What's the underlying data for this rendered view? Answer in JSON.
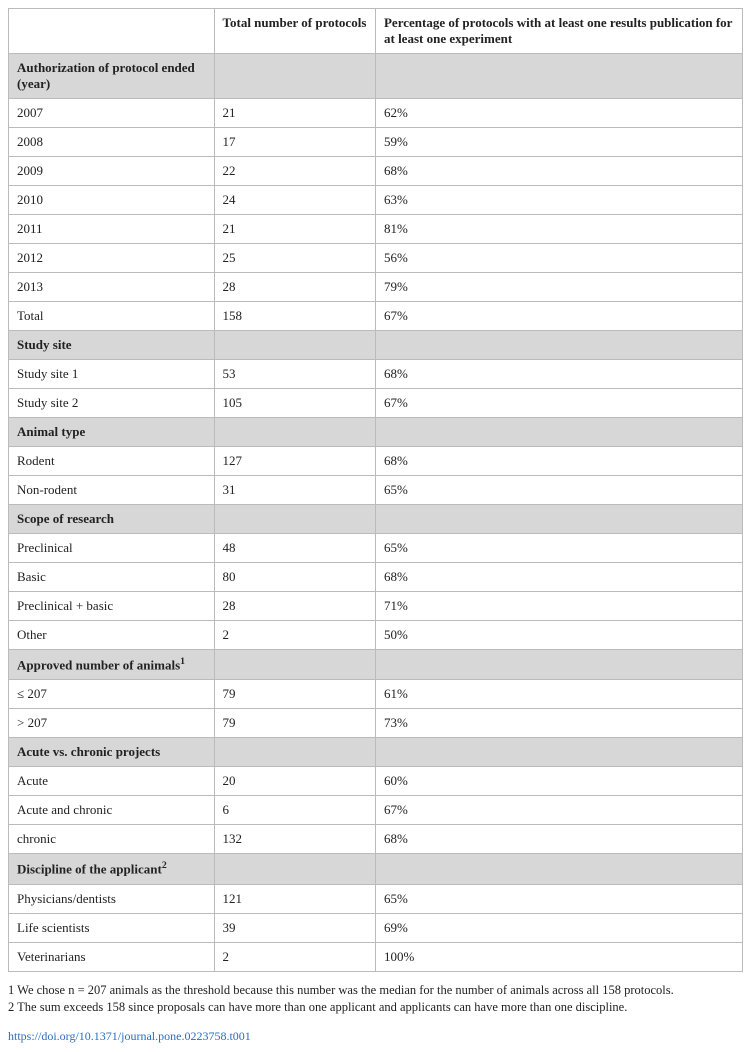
{
  "columns": [
    "",
    "Total number of protocols",
    "Percentage of protocols with at least one results publication for at least one experiment"
  ],
  "sections": [
    {
      "title": "Authorization of protocol ended (year)",
      "rows": [
        [
          "2007",
          "21",
          "62%"
        ],
        [
          "2008",
          "17",
          "59%"
        ],
        [
          "2009",
          "22",
          "68%"
        ],
        [
          "2010",
          "24",
          "63%"
        ],
        [
          "2011",
          "21",
          "81%"
        ],
        [
          "2012",
          "25",
          "56%"
        ],
        [
          "2013",
          "28",
          "79%"
        ],
        [
          "Total",
          "158",
          "67%"
        ]
      ]
    },
    {
      "title": "Study site",
      "rows": [
        [
          "Study site 1",
          "53",
          "68%"
        ],
        [
          "Study site 2",
          "105",
          "67%"
        ]
      ]
    },
    {
      "title": "Animal type",
      "rows": [
        [
          "Rodent",
          "127",
          "68%"
        ],
        [
          "Non-rodent",
          "31",
          "65%"
        ]
      ]
    },
    {
      "title": "Scope of research",
      "rows": [
        [
          "Preclinical",
          "48",
          "65%"
        ],
        [
          "Basic",
          "80",
          "68%"
        ],
        [
          "Preclinical + basic",
          "28",
          "71%"
        ],
        [
          "Other",
          "2",
          "50%"
        ]
      ]
    },
    {
      "title": "Approved number of animals",
      "title_super": "1",
      "rows": [
        [
          "≤ 207",
          "79",
          "61%"
        ],
        [
          "> 207",
          "79",
          "73%"
        ]
      ]
    },
    {
      "title": "Acute vs. chronic projects",
      "rows": [
        [
          "Acute",
          "20",
          "60%"
        ],
        [
          "Acute and chronic",
          "6",
          "67%"
        ],
        [
          "chronic",
          "132",
          "68%"
        ]
      ]
    },
    {
      "title": "Discipline of the applicant",
      "title_super": "2",
      "rows": [
        [
          "Physicians/dentists",
          "121",
          "65%"
        ],
        [
          "Life scientists",
          "39",
          "69%"
        ],
        [
          "Veterinarians",
          "2",
          "100%"
        ]
      ]
    }
  ],
  "footnotes": [
    "1 We chose n = 207 animals as the threshold because this number was the median for the number of animals across all 158 protocols.",
    "2 The sum exceeds 158 since proposals can have more than one applicant and applicants can have more than one discipline."
  ],
  "doi": "https://doi.org/10.1371/journal.pone.0223758.t001",
  "colors": {
    "section_bg": "#d7d7d7",
    "border": "#bbbbbb",
    "text": "#222222",
    "link": "#2a6ebb"
  }
}
